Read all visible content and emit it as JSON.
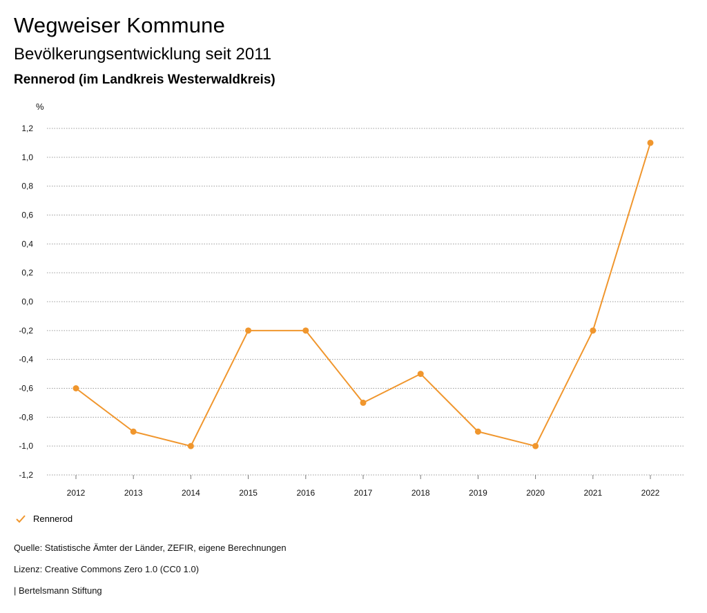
{
  "header": {
    "title": "Wegweiser Kommune",
    "subtitle": "Bevölkerungsentwicklung seit 2011",
    "region": "Rennerod (im Landkreis Westerwaldkreis)"
  },
  "chart_data": {
    "type": "line",
    "yunit": "%",
    "categories": [
      "2012",
      "2013",
      "2014",
      "2015",
      "2016",
      "2017",
      "2018",
      "2019",
      "2020",
      "2021",
      "2022"
    ],
    "series": [
      {
        "name": "Rennerod",
        "color": "#f0962d",
        "values": [
          -0.6,
          -0.9,
          -1.0,
          -0.2,
          -0.2,
          -0.7,
          -0.5,
          -0.9,
          -1.0,
          -0.2,
          1.1
        ]
      }
    ],
    "ylim": [
      -1.2,
      1.2
    ],
    "yticks": [
      1.2,
      1.0,
      0.8,
      0.6,
      0.4,
      0.2,
      0.0,
      -0.2,
      -0.4,
      -0.6,
      -0.8,
      -1.0,
      -1.2
    ],
    "ytick_labels": [
      "1,2",
      "1,0",
      "0,8",
      "0,6",
      "0,4",
      "0,2",
      "0,0",
      "-0,2",
      "-0,4",
      "-0,6",
      "-0,8",
      "-1,0",
      "-1,2"
    ],
    "grid": true,
    "legend": "bottom-left"
  },
  "legend": {
    "label": "Rennerod",
    "icon": "check-mark-icon"
  },
  "footer": {
    "source": "Quelle: Statistische Ämter der Länder, ZEFIR, eigene Berechnungen",
    "license": "Lizenz: Creative Commons Zero 1.0 (CC0 1.0)",
    "credit": "| Bertelsmann Stiftung"
  }
}
